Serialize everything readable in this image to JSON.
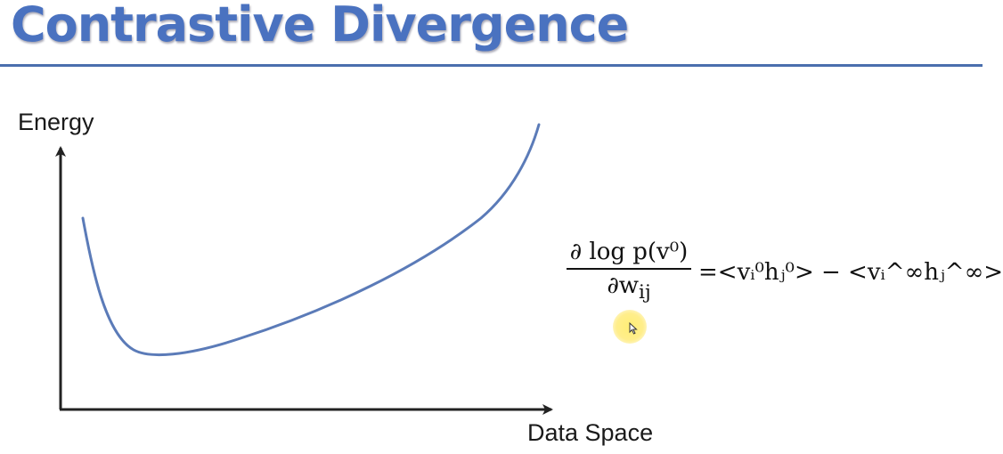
{
  "title": "Contrastive Divergence",
  "diagram": {
    "y_axis_label": "Energy",
    "x_axis_label": "Data Space"
  },
  "formula": {
    "numerator": "∂ log p(v⁰)",
    "denominator": "∂w",
    "denominator_sub": "ij",
    "rhs": "=<vᵢ⁰hⱼ⁰> − <vᵢ^∞hⱼ^∞>"
  },
  "colors": {
    "title": "#4a72c0",
    "rule": "#4a6fae",
    "curve": "#5b7bb8",
    "axis": "#222222",
    "cursor_highlight": "#ffe66e"
  },
  "icons": {
    "cursor": "mouse-pointer-icon"
  }
}
